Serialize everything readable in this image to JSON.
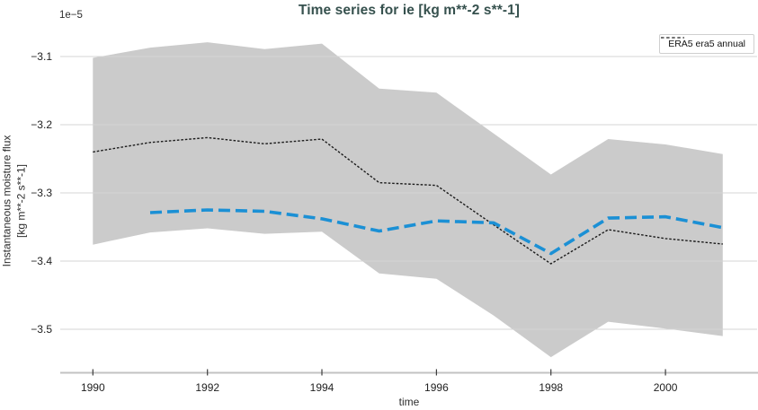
{
  "chart_data": {
    "type": "line",
    "title": "Time series for ie [kg m**-2 s**-1]",
    "xlabel": "time",
    "ylabel_line1": "Instantaneous moisture flux",
    "ylabel_line2": "[kg m**-2 s**-1]",
    "offset_label": "1e−5",
    "unit_scale": "1e-5",
    "grid": true,
    "legend_position": "upper right",
    "legend": [
      {
        "label": "ERA5 era5 annual",
        "line_style": "black-dashed"
      }
    ],
    "xlim": [
      1989.43,
      2001.6
    ],
    "ylim": [
      -3.5632,
      -3.0605
    ],
    "x_ticks": [
      1990,
      1992,
      1994,
      1996,
      1998,
      2000
    ],
    "x_tick_labels": [
      "1990",
      "1992",
      "1994",
      "1996",
      "1998",
      "2000"
    ],
    "y_ticks": [
      -3.1,
      -3.2,
      -3.3,
      -3.4,
      -3.5
    ],
    "y_tick_labels": [
      "−3.1",
      "−3.2",
      "−3.3",
      "−3.4",
      "−3.5"
    ],
    "band": {
      "name": "era5-ensemble-spread",
      "color": "#cbcbcb",
      "x": [
        1990,
        1991,
        1992,
        1993,
        1994,
        1995,
        1996,
        1997,
        1998,
        1999,
        2000,
        2001
      ],
      "upper": [
        -3.102,
        -3.087,
        -3.079,
        -3.089,
        -3.081,
        -3.147,
        -3.153,
        -3.213,
        -3.273,
        -3.221,
        -3.229,
        -3.243
      ],
      "lower": [
        -3.376,
        -3.358,
        -3.352,
        -3.36,
        -3.357,
        -3.418,
        -3.426,
        -3.48,
        -3.541,
        -3.489,
        -3.499,
        -3.51
      ]
    },
    "series": [
      {
        "name": "ERA5 era5 annual",
        "color": "#1c1c1c",
        "dash": [
          2.6,
          1.9
        ],
        "width": 1.4,
        "x": [
          1990,
          1991,
          1992,
          1993,
          1994,
          1995,
          1996,
          1997,
          1998,
          1999,
          2000,
          2001
        ],
        "y": [
          -3.24,
          -3.226,
          -3.219,
          -3.228,
          -3.221,
          -3.285,
          -3.289,
          -3.347,
          -3.404,
          -3.354,
          -3.367,
          -3.375
        ]
      },
      {
        "name": "ensemble-mean-annual",
        "color": "#1b90d5",
        "dash": [
          13,
          6
        ],
        "width": 3.6,
        "x": [
          1991,
          1992,
          1993,
          1994,
          1995,
          1996,
          1997,
          1998,
          1999,
          2000,
          2001
        ],
        "y": [
          -3.329,
          -3.325,
          -3.327,
          -3.338,
          -3.356,
          -3.341,
          -3.344,
          -3.389,
          -3.337,
          -3.335,
          -3.351
        ]
      }
    ],
    "colors": {
      "band": "#cbcbcb",
      "grid": "#d4d4d4",
      "spine": "#c2c2c2",
      "tick": "#3c3c3c",
      "tick_label": "#1f1f1f",
      "title": "#36514e",
      "blue_line": "#1b90d5",
      "black_line": "#1c1c1c"
    }
  }
}
